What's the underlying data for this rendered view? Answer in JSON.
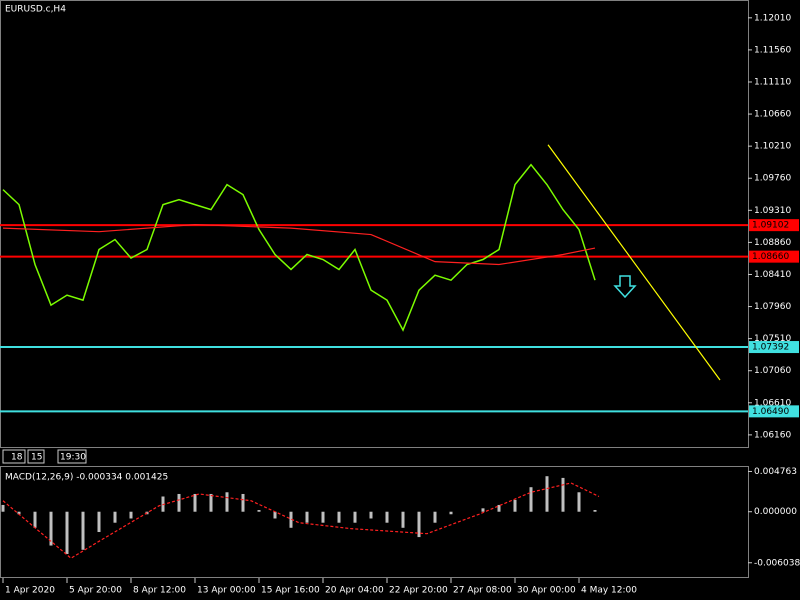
{
  "chart_data": [
    {
      "type": "line",
      "title": "EURUSD.c,H4",
      "timer": [
        "18",
        "15",
        "19:30"
      ],
      "xlim": [
        -0.75,
        186.25
      ],
      "xticks": [
        {
          "value": 0,
          "label": "1 Apr 2020"
        },
        {
          "value": 16,
          "label": "5 Apr 20:00"
        },
        {
          "value": 32,
          "label": "8 Apr 12:00"
        },
        {
          "value": 48,
          "label": "13 Apr 00:00"
        },
        {
          "value": 64,
          "label": "15 Apr 16:00"
        },
        {
          "value": 80,
          "label": "20 Apr 04:00"
        },
        {
          "value": 96,
          "label": "22 Apr 20:00"
        },
        {
          "value": 112,
          "label": "27 Apr 08:00"
        },
        {
          "value": 128,
          "label": "30 Apr 00:00"
        },
        {
          "value": 144,
          "label": "4 May 12:00"
        }
      ],
      "ylim": [
        1.0599,
        1.1226
      ],
      "yticks": [
        {
          "value": 1.1201,
          "label": "1.12010"
        },
        {
          "value": 1.1156,
          "label": "1.11560"
        },
        {
          "value": 1.1111,
          "label": "1.11110"
        },
        {
          "value": 1.1066,
          "label": "1.10660"
        },
        {
          "value": 1.1021,
          "label": "1.10210"
        },
        {
          "value": 1.0976,
          "label": "1.09760"
        },
        {
          "value": 1.0931,
          "label": "1.09310"
        },
        {
          "value": 1.0886,
          "label": "1.08860"
        },
        {
          "value": 1.0841,
          "label": "1.08410"
        },
        {
          "value": 1.0796,
          "label": "1.07960"
        },
        {
          "value": 1.0751,
          "label": "1.07510"
        },
        {
          "value": 1.0706,
          "label": "1.07060"
        },
        {
          "value": 1.0661,
          "label": "1.06610"
        },
        {
          "value": 1.0616,
          "label": "1.06160"
        }
      ],
      "series": [
        {
          "color": "#7cfc00",
          "x": [
            0,
            4,
            8,
            12,
            16,
            20,
            24,
            28,
            32,
            36,
            40,
            44,
            48,
            52,
            56,
            60,
            64,
            68,
            72,
            76,
            80,
            84,
            88,
            92,
            96,
            100,
            104,
            108,
            112,
            116,
            120,
            124,
            128,
            132,
            136,
            140,
            144,
            148
          ],
          "values": [
            1.096,
            1.0939,
            1.0855,
            1.0798,
            1.0812,
            1.0805,
            1.0876,
            1.089,
            1.0864,
            1.0876,
            1.0939,
            1.0946,
            1.0939,
            1.0932,
            1.0967,
            1.0953,
            1.0904,
            1.0869,
            1.0848,
            1.0869,
            1.0862,
            1.0848,
            1.0876,
            1.0819,
            1.0805,
            1.0763,
            1.0819,
            1.084,
            1.0833,
            1.0855,
            1.0862,
            1.0876,
            1.0967,
            1.0995,
            1.0967,
            1.0932,
            1.0904,
            1.0833
          ]
        },
        {
          "color": "#ff2020",
          "x": [
            0,
            24,
            48,
            72,
            92,
            108,
            124,
            140,
            148
          ],
          "values": [
            1.0906,
            1.0901,
            1.0911,
            1.0906,
            1.0897,
            1.0859,
            1.0855,
            1.0869,
            1.0878
          ]
        },
        {
          "color": "#ffff00",
          "x": [
            136.25,
            179.25
          ],
          "values": [
            1.1023,
            1.0693
          ]
        }
      ],
      "levels": [
        {
          "value": 1.09102,
          "label": "1.09102",
          "color": "#ff0000"
        },
        {
          "value": 1.0866,
          "label": "1.08660",
          "color": "#ff0000"
        },
        {
          "value": 1.07392,
          "label": "1.07392",
          "color": "#40e0e0"
        },
        {
          "value": 1.0649,
          "label": "1.06490",
          "color": "#40e0e0"
        }
      ]
    },
    {
      "type": "bar",
      "title": "MACD(12,26,9) -0.000334 0.001425",
      "xlim": [
        -0.75,
        186.25
      ],
      "ylim": [
        -0.00784,
        0.00529
      ],
      "yticks": [
        0.004763,
        {
          "value": 0,
          "label": "0.000000"
        },
        -0.006038
      ],
      "series": [
        {
          "color": "#c0c0c0",
          "x": [
            0,
            4,
            8,
            12,
            16,
            20,
            24,
            28,
            32,
            36,
            40,
            44,
            48,
            52,
            56,
            60,
            64,
            68,
            72,
            76,
            80,
            84,
            88,
            92,
            96,
            100,
            104,
            108,
            112,
            116,
            120,
            124,
            128,
            132,
            136,
            140,
            144,
            148
          ],
          "values": [
            0.0008,
            -0.0003,
            -0.0019,
            -0.004,
            -0.005,
            -0.0045,
            -0.0024,
            -0.0013,
            -0.0008,
            -0.0003,
            0.0018,
            0.0021,
            0.0021,
            0.0021,
            0.0023,
            0.0021,
            0.0002,
            -0.0008,
            -0.0019,
            -0.0013,
            -0.0013,
            -0.0013,
            -0.0013,
            -0.0008,
            -0.0013,
            -0.0019,
            -0.003,
            -0.0013,
            -0.0003,
            0.0,
            0.0004,
            0.0008,
            0.0014,
            0.0029,
            0.0042,
            0.004,
            0.0023,
            0.0002
          ]
        },
        {
          "color": "#ff2020",
          "dashed": true,
          "x": [
            0,
            17,
            24,
            39,
            49,
            62,
            74,
            87,
            106,
            119,
            132,
            142,
            149
          ],
          "values": [
            0.0013,
            -0.0055,
            -0.0035,
            0.0007,
            0.0021,
            0.0013,
            -0.0013,
            -0.002,
            -0.0026,
            -0.0003,
            0.0023,
            0.0034,
            0.0018
          ]
        }
      ]
    }
  ]
}
